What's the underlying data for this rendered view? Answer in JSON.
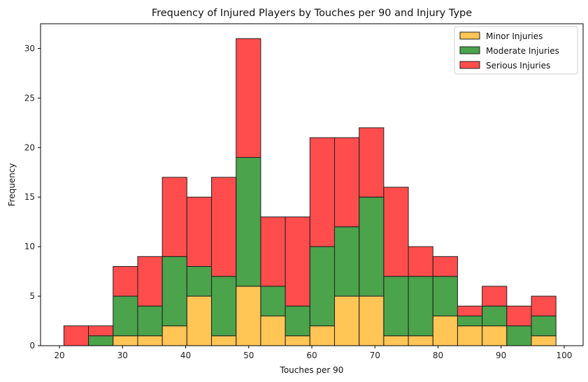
{
  "chart_data": {
    "type": "bar",
    "subtype": "stacked-histogram",
    "title": "Frequency of Injured Players by Touches per 90 and Injury Type",
    "xlabel": "Touches per 90",
    "ylabel": "Frequency",
    "xlim": [
      17,
      103
    ],
    "ylim": [
      0,
      32.5
    ],
    "xticks": [
      20,
      30,
      40,
      50,
      60,
      70,
      80,
      90,
      100
    ],
    "yticks": [
      0,
      5,
      10,
      15,
      20,
      25,
      30
    ],
    "bin_edges": [
      20.7,
      24.6,
      28.5,
      32.4,
      36.3,
      40.2,
      44.1,
      48.0,
      51.9,
      55.8,
      59.7,
      63.6,
      67.5,
      71.4,
      75.3,
      79.2,
      83.1,
      87.0,
      90.9,
      94.8,
      98.7
    ],
    "series": [
      {
        "name": "Minor Injuries",
        "color": "#FFB72B",
        "values": [
          0,
          0,
          1,
          1,
          2,
          5,
          1,
          6,
          3,
          1,
          2,
          5,
          5,
          1,
          1,
          3,
          2,
          2,
          0,
          1
        ]
      },
      {
        "name": "Moderate Injuries",
        "color": "#1E8C1E",
        "values": [
          0,
          1,
          4,
          3,
          7,
          3,
          6,
          13,
          3,
          3,
          8,
          7,
          10,
          6,
          6,
          4,
          1,
          2,
          2,
          2
        ]
      },
      {
        "name": "Serious Injuries",
        "color": "#FF2020",
        "values": [
          2,
          1,
          3,
          5,
          8,
          7,
          10,
          12,
          7,
          9,
          11,
          9,
          7,
          9,
          3,
          2,
          1,
          2,
          2,
          2
        ]
      }
    ],
    "legend_position": "top-right",
    "grid": false
  }
}
